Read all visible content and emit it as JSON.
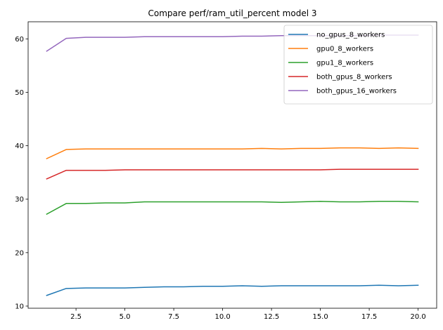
{
  "chart_data": {
    "type": "line",
    "title": "Compare perf/ram_util_percent model 3",
    "xlabel": "",
    "ylabel": "",
    "xlim": [
      0.05,
      20.95
    ],
    "ylim": [
      9.6,
      63.2
    ],
    "x_ticks": [
      2.5,
      5.0,
      7.5,
      10.0,
      12.5,
      15.0,
      17.5,
      20.0
    ],
    "x_tick_labels": [
      "2.5",
      "5.0",
      "7.5",
      "10.0",
      "12.5",
      "15.0",
      "17.5",
      "20.0"
    ],
    "y_ticks": [
      10,
      20,
      30,
      40,
      50,
      60
    ],
    "y_tick_labels": [
      "10",
      "20",
      "30",
      "40",
      "50",
      "60"
    ],
    "grid": false,
    "legend_position": "top-right",
    "x": [
      1,
      2,
      3,
      4,
      5,
      6,
      7,
      8,
      9,
      10,
      11,
      12,
      13,
      14,
      15,
      16,
      17,
      18,
      19,
      20
    ],
    "series": [
      {
        "name": "no_gpus_8_workers",
        "color": "#1f77b4",
        "values": [
          12.0,
          13.3,
          13.4,
          13.4,
          13.4,
          13.5,
          13.6,
          13.6,
          13.7,
          13.7,
          13.8,
          13.7,
          13.8,
          13.8,
          13.8,
          13.8,
          13.8,
          13.9,
          13.8,
          13.9
        ]
      },
      {
        "name": "gpu0_8_workers",
        "color": "#ff7f0e",
        "values": [
          37.6,
          39.3,
          39.4,
          39.4,
          39.4,
          39.4,
          39.4,
          39.4,
          39.4,
          39.4,
          39.4,
          39.5,
          39.4,
          39.5,
          39.5,
          39.6,
          39.6,
          39.5,
          39.6,
          39.5
        ]
      },
      {
        "name": "gpu1_8_workers",
        "color": "#2ca02c",
        "values": [
          27.2,
          29.2,
          29.2,
          29.3,
          29.3,
          29.5,
          29.5,
          29.5,
          29.5,
          29.5,
          29.5,
          29.5,
          29.4,
          29.5,
          29.6,
          29.5,
          29.5,
          29.6,
          29.6,
          29.5
        ]
      },
      {
        "name": "both_gpus_8_workers",
        "color": "#d62728",
        "values": [
          33.8,
          35.4,
          35.4,
          35.4,
          35.5,
          35.5,
          35.5,
          35.5,
          35.5,
          35.5,
          35.5,
          35.5,
          35.5,
          35.5,
          35.5,
          35.6,
          35.6,
          35.6,
          35.6,
          35.6
        ]
      },
      {
        "name": "both_gpus_16_workers",
        "color": "#9467bd",
        "values": [
          57.7,
          60.1,
          60.3,
          60.3,
          60.3,
          60.4,
          60.4,
          60.4,
          60.4,
          60.4,
          60.5,
          60.5,
          60.6,
          60.6,
          60.6,
          60.6,
          60.6,
          60.7,
          60.7,
          60.7
        ]
      }
    ]
  }
}
